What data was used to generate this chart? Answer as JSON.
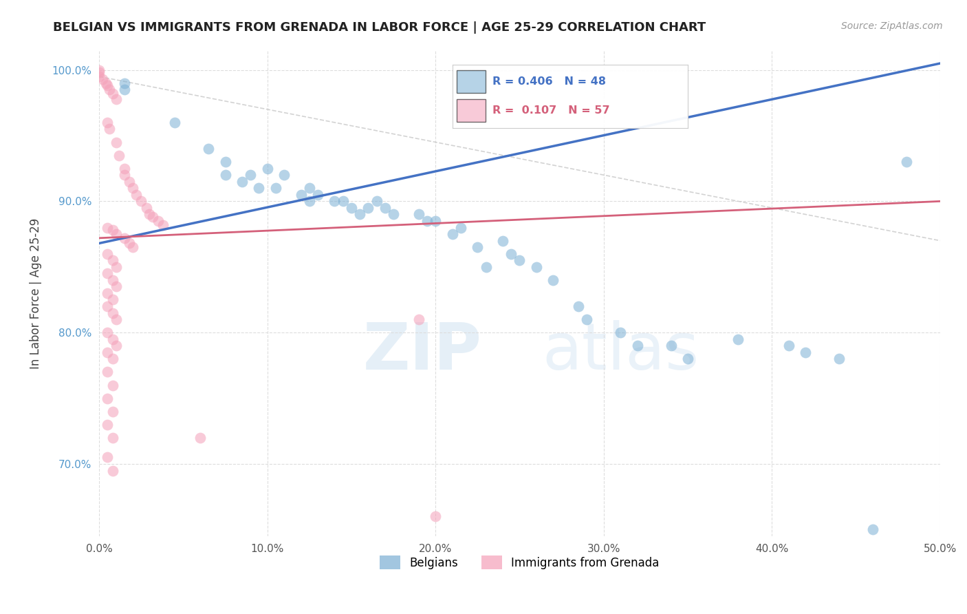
{
  "title": "BELGIAN VS IMMIGRANTS FROM GRENADA IN LABOR FORCE | AGE 25-29 CORRELATION CHART",
  "source": "Source: ZipAtlas.com",
  "ylabel": "In Labor Force | Age 25-29",
  "xlim": [
    0.0,
    0.5
  ],
  "ylim": [
    0.645,
    1.015
  ],
  "ytick_values": [
    0.7,
    0.8,
    0.9,
    1.0
  ],
  "xtick_values": [
    0.0,
    0.1,
    0.2,
    0.3,
    0.4,
    0.5
  ],
  "blue_scatter": [
    [
      0.015,
      0.99
    ],
    [
      0.015,
      0.985
    ],
    [
      0.045,
      0.96
    ],
    [
      0.065,
      0.94
    ],
    [
      0.075,
      0.93
    ],
    [
      0.075,
      0.92
    ],
    [
      0.085,
      0.915
    ],
    [
      0.09,
      0.92
    ],
    [
      0.095,
      0.91
    ],
    [
      0.1,
      0.925
    ],
    [
      0.105,
      0.91
    ],
    [
      0.11,
      0.92
    ],
    [
      0.12,
      0.905
    ],
    [
      0.125,
      0.91
    ],
    [
      0.125,
      0.9
    ],
    [
      0.13,
      0.905
    ],
    [
      0.14,
      0.9
    ],
    [
      0.145,
      0.9
    ],
    [
      0.15,
      0.895
    ],
    [
      0.155,
      0.89
    ],
    [
      0.16,
      0.895
    ],
    [
      0.165,
      0.9
    ],
    [
      0.17,
      0.895
    ],
    [
      0.175,
      0.89
    ],
    [
      0.19,
      0.89
    ],
    [
      0.195,
      0.885
    ],
    [
      0.2,
      0.885
    ],
    [
      0.21,
      0.875
    ],
    [
      0.215,
      0.88
    ],
    [
      0.225,
      0.865
    ],
    [
      0.23,
      0.85
    ],
    [
      0.24,
      0.87
    ],
    [
      0.245,
      0.86
    ],
    [
      0.25,
      0.855
    ],
    [
      0.26,
      0.85
    ],
    [
      0.27,
      0.84
    ],
    [
      0.285,
      0.82
    ],
    [
      0.29,
      0.81
    ],
    [
      0.31,
      0.8
    ],
    [
      0.32,
      0.79
    ],
    [
      0.34,
      0.79
    ],
    [
      0.35,
      0.78
    ],
    [
      0.38,
      0.795
    ],
    [
      0.41,
      0.79
    ],
    [
      0.42,
      0.785
    ],
    [
      0.44,
      0.78
    ],
    [
      0.46,
      0.65
    ],
    [
      0.48,
      0.93
    ]
  ],
  "pink_scatter": [
    [
      0.0,
      1.0
    ],
    [
      0.0,
      0.998
    ],
    [
      0.0,
      0.995
    ],
    [
      0.002,
      0.993
    ],
    [
      0.004,
      0.99
    ],
    [
      0.005,
      0.988
    ],
    [
      0.006,
      0.985
    ],
    [
      0.008,
      0.982
    ],
    [
      0.01,
      0.978
    ],
    [
      0.005,
      0.96
    ],
    [
      0.006,
      0.955
    ],
    [
      0.01,
      0.945
    ],
    [
      0.012,
      0.935
    ],
    [
      0.015,
      0.925
    ],
    [
      0.015,
      0.92
    ],
    [
      0.018,
      0.915
    ],
    [
      0.02,
      0.91
    ],
    [
      0.022,
      0.905
    ],
    [
      0.025,
      0.9
    ],
    [
      0.028,
      0.895
    ],
    [
      0.03,
      0.89
    ],
    [
      0.032,
      0.888
    ],
    [
      0.035,
      0.885
    ],
    [
      0.038,
      0.882
    ],
    [
      0.005,
      0.88
    ],
    [
      0.008,
      0.878
    ],
    [
      0.01,
      0.875
    ],
    [
      0.015,
      0.872
    ],
    [
      0.018,
      0.868
    ],
    [
      0.02,
      0.865
    ],
    [
      0.005,
      0.86
    ],
    [
      0.008,
      0.855
    ],
    [
      0.01,
      0.85
    ],
    [
      0.005,
      0.845
    ],
    [
      0.008,
      0.84
    ],
    [
      0.01,
      0.835
    ],
    [
      0.005,
      0.83
    ],
    [
      0.008,
      0.825
    ],
    [
      0.005,
      0.82
    ],
    [
      0.008,
      0.815
    ],
    [
      0.01,
      0.81
    ],
    [
      0.005,
      0.8
    ],
    [
      0.008,
      0.795
    ],
    [
      0.01,
      0.79
    ],
    [
      0.005,
      0.785
    ],
    [
      0.008,
      0.78
    ],
    [
      0.005,
      0.77
    ],
    [
      0.008,
      0.76
    ],
    [
      0.005,
      0.75
    ],
    [
      0.008,
      0.74
    ],
    [
      0.005,
      0.73
    ],
    [
      0.008,
      0.72
    ],
    [
      0.06,
      0.72
    ],
    [
      0.005,
      0.705
    ],
    [
      0.008,
      0.695
    ],
    [
      0.19,
      0.81
    ],
    [
      0.2,
      0.66
    ]
  ],
  "blue_color": "#7bafd4",
  "pink_color": "#f4a0b8",
  "blue_line_color": "#4472c4",
  "pink_line_color": "#d4607a",
  "dashed_line_color": "#c8c8c8",
  "watermark_zip": "ZIP",
  "watermark_atlas": "atlas",
  "background_color": "#ffffff",
  "grid_color": "#dddddd"
}
